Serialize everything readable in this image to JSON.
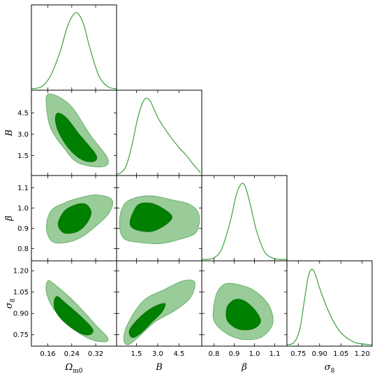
{
  "chart_data": {
    "type": "triangle-corner",
    "parameters": [
      {
        "name": "Ω",
        "sub": "m0",
        "ticks": [
          "0.16",
          "0.24",
          "0.32"
        ],
        "tickvals": [
          0.16,
          0.24,
          0.32
        ],
        "lim": [
          0.105,
          0.39
        ]
      },
      {
        "name": "B",
        "sub": "",
        "ticks": [
          "1.5",
          "3.0",
          "4.5"
        ],
        "tickvals": [
          1.5,
          3.0,
          4.5
        ],
        "lim": [
          0.1,
          6.1
        ]
      },
      {
        "name": "β",
        "sub": "",
        "ticks": [
          "0.8",
          "0.9",
          "1.0",
          "1.1"
        ],
        "tickvals": [
          0.8,
          0.9,
          1.0,
          1.1
        ],
        "lim": [
          0.74,
          1.16
        ]
      },
      {
        "name": "σ",
        "sub": "8",
        "ticks": [
          "0.75",
          "0.90",
          "1.05",
          "1.20"
        ],
        "tickvals": [
          0.75,
          0.9,
          1.05,
          1.2
        ],
        "lim": [
          0.67,
          1.27
        ]
      }
    ],
    "colors": {
      "inner": "#008000",
      "outer": "#99cc99",
      "line": "#3aa13a"
    },
    "marginals": [
      {
        "param": 0,
        "x": [
          0.105,
          0.14,
          0.17,
          0.2,
          0.225,
          0.245,
          0.26,
          0.28,
          0.3,
          0.33,
          0.36,
          0.39
        ],
        "y": [
          0.0,
          0.03,
          0.18,
          0.48,
          0.82,
          0.98,
          1.0,
          0.85,
          0.55,
          0.18,
          0.03,
          0.0
        ]
      },
      {
        "param": 1,
        "x": [
          0.1,
          0.4,
          0.8,
          1.2,
          1.6,
          2.0,
          2.3,
          2.6,
          3.0,
          3.5,
          4.0,
          4.5,
          5.0,
          5.5,
          6.0
        ],
        "y": [
          0.0,
          0.02,
          0.12,
          0.4,
          0.75,
          0.97,
          1.0,
          0.92,
          0.75,
          0.6,
          0.47,
          0.35,
          0.25,
          0.13,
          0.02
        ]
      },
      {
        "param": 2,
        "x": [
          0.74,
          0.8,
          0.84,
          0.88,
          0.91,
          0.935,
          0.955,
          0.98,
          1.01,
          1.05,
          1.1,
          1.16
        ],
        "y": [
          0.0,
          0.02,
          0.15,
          0.5,
          0.85,
          1.0,
          0.96,
          0.72,
          0.38,
          0.1,
          0.01,
          0.0
        ]
      },
      {
        "param": 3,
        "x": [
          0.67,
          0.72,
          0.76,
          0.79,
          0.82,
          0.845,
          0.87,
          0.9,
          0.95,
          1.0,
          1.05,
          1.1,
          1.15,
          1.2,
          1.27
        ],
        "y": [
          0.0,
          0.03,
          0.2,
          0.55,
          0.9,
          1.0,
          0.93,
          0.75,
          0.5,
          0.3,
          0.16,
          0.08,
          0.03,
          0.01,
          0.0
        ]
      }
    ],
    "contours": [
      {
        "x": 0,
        "y": 1,
        "outer": [
          [
            0.16,
            5.8
          ],
          [
            0.2,
            5.6
          ],
          [
            0.245,
            4.8
          ],
          [
            0.3,
            3.0
          ],
          [
            0.355,
            1.5
          ],
          [
            0.36,
            0.9
          ],
          [
            0.33,
            0.7
          ],
          [
            0.26,
            1.0
          ],
          [
            0.215,
            2.0
          ],
          [
            0.17,
            3.4
          ],
          [
            0.155,
            5.0
          ]
        ],
        "inner": [
          [
            0.195,
            4.5
          ],
          [
            0.225,
            4.1
          ],
          [
            0.265,
            3.0
          ],
          [
            0.32,
            1.6
          ],
          [
            0.315,
            1.1
          ],
          [
            0.275,
            1.2
          ],
          [
            0.23,
            2.0
          ],
          [
            0.195,
            3.2
          ],
          [
            0.185,
            4.1
          ]
        ]
      },
      {
        "x": 0,
        "y": 2,
        "outer": [
          [
            0.155,
            0.9
          ],
          [
            0.17,
            0.985
          ],
          [
            0.215,
            1.025
          ],
          [
            0.265,
            1.05
          ],
          [
            0.325,
            1.065
          ],
          [
            0.375,
            1.04
          ],
          [
            0.365,
            0.975
          ],
          [
            0.32,
            0.91
          ],
          [
            0.27,
            0.855
          ],
          [
            0.22,
            0.83
          ],
          [
            0.175,
            0.835
          ]
        ],
        "inner": [
          [
            0.195,
            0.93
          ],
          [
            0.215,
            0.985
          ],
          [
            0.25,
            1.015
          ],
          [
            0.285,
            1.02
          ],
          [
            0.305,
            0.98
          ],
          [
            0.29,
            0.925
          ],
          [
            0.26,
            0.885
          ],
          [
            0.22,
            0.875
          ],
          [
            0.2,
            0.895
          ]
        ]
      },
      {
        "x": 0,
        "y": 3,
        "outer": [
          [
            0.16,
            1.13
          ],
          [
            0.185,
            1.1
          ],
          [
            0.25,
            0.98
          ],
          [
            0.32,
            0.82
          ],
          [
            0.36,
            0.73
          ],
          [
            0.35,
            0.7
          ],
          [
            0.3,
            0.72
          ],
          [
            0.24,
            0.8
          ],
          [
            0.18,
            0.93
          ],
          [
            0.155,
            1.05
          ]
        ],
        "inner": [
          [
            0.19,
            1.02
          ],
          [
            0.215,
            0.98
          ],
          [
            0.27,
            0.88
          ],
          [
            0.31,
            0.79
          ],
          [
            0.3,
            0.75
          ],
          [
            0.27,
            0.76
          ],
          [
            0.225,
            0.82
          ],
          [
            0.19,
            0.9
          ],
          [
            0.18,
            0.97
          ]
        ]
      },
      {
        "x": 1,
        "y": 2,
        "outer": [
          [
            0.3,
            0.93
          ],
          [
            0.6,
            1.015
          ],
          [
            1.4,
            1.05
          ],
          [
            2.6,
            1.06
          ],
          [
            4.0,
            1.04
          ],
          [
            5.2,
            1.02
          ],
          [
            5.9,
            0.97
          ],
          [
            5.7,
            0.88
          ],
          [
            4.5,
            0.845
          ],
          [
            3.2,
            0.825
          ],
          [
            1.8,
            0.83
          ],
          [
            0.6,
            0.85
          ]
        ],
        "inner": [
          [
            1.1,
            0.95
          ],
          [
            1.6,
            1.015
          ],
          [
            2.4,
            1.025
          ],
          [
            3.2,
            1.005
          ],
          [
            4.0,
            0.96
          ],
          [
            3.6,
            0.92
          ],
          [
            2.6,
            0.885
          ],
          [
            1.6,
            0.89
          ],
          [
            1.1,
            0.91
          ]
        ]
      },
      {
        "x": 1,
        "y": 3,
        "outer": [
          [
            0.6,
            0.72
          ],
          [
            0.9,
            0.83
          ],
          [
            2.0,
            0.99
          ],
          [
            3.5,
            1.07
          ],
          [
            4.8,
            1.13
          ],
          [
            5.6,
            1.12
          ],
          [
            5.3,
            1.01
          ],
          [
            4.2,
            0.92
          ],
          [
            2.8,
            0.84
          ],
          [
            1.6,
            0.73
          ],
          [
            0.9,
            0.68
          ]
        ],
        "inner": [
          [
            1.0,
            0.78
          ],
          [
            1.6,
            0.86
          ],
          [
            2.6,
            0.94
          ],
          [
            3.5,
            0.97
          ],
          [
            3.3,
            0.91
          ],
          [
            2.6,
            0.84
          ],
          [
            1.8,
            0.76
          ],
          [
            1.2,
            0.73
          ]
        ]
      },
      {
        "x": 2,
        "y": 3,
        "outer": [
          [
            0.82,
            1.06
          ],
          [
            0.86,
            1.11
          ],
          [
            0.93,
            1.1
          ],
          [
            1.0,
            1.06
          ],
          [
            1.07,
            0.96
          ],
          [
            1.09,
            0.83
          ],
          [
            1.03,
            0.73
          ],
          [
            0.93,
            0.72
          ],
          [
            0.85,
            0.77
          ],
          [
            0.8,
            0.85
          ],
          [
            0.8,
            0.96
          ]
        ],
        "inner": [
          [
            0.87,
            0.96
          ],
          [
            0.91,
            1.0
          ],
          [
            0.96,
            0.98
          ],
          [
            1.01,
            0.91
          ],
          [
            1.03,
            0.84
          ],
          [
            0.99,
            0.79
          ],
          [
            0.92,
            0.79
          ],
          [
            0.87,
            0.84
          ],
          [
            0.86,
            0.9
          ]
        ]
      }
    ]
  }
}
